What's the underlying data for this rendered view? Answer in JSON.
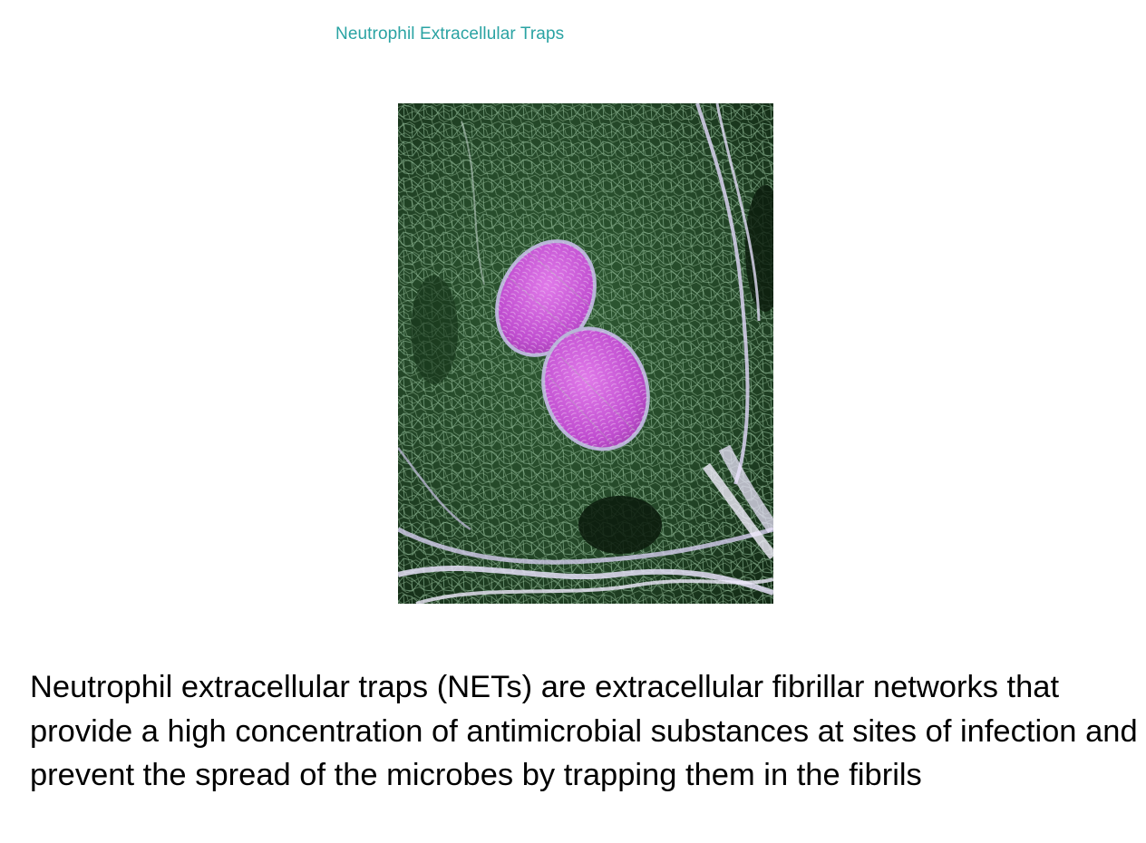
{
  "slide": {
    "title": "Neutrophil Extracellular Traps",
    "body": "Neutrophil extracellular traps (NETs) are extracellular fibrillar networks that provide a high concentration of antimicrobial substances at sites of infection and prevent the spread of the microbes by trapping them in the fibrils"
  },
  "image": {
    "subject": "net-micrograph",
    "colors": {
      "background": "#0f2512",
      "mesh": "#6f9c72",
      "fibrils": "#d9d2f0",
      "bacteria": "#c24fd3"
    }
  }
}
